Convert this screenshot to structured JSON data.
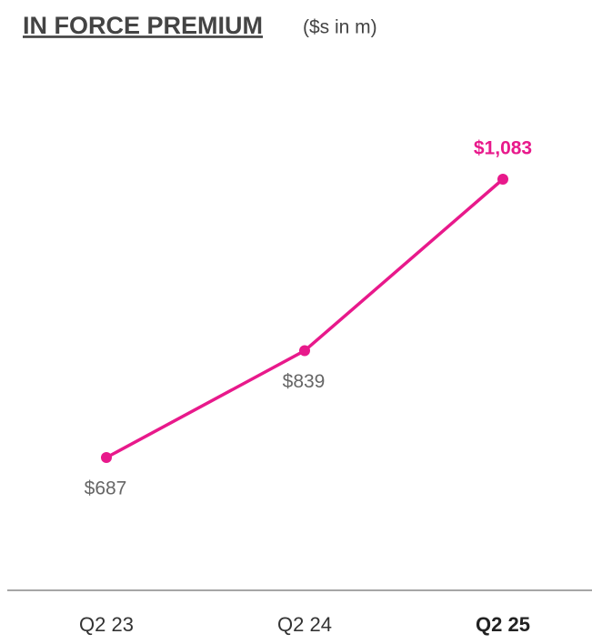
{
  "chart_data": {
    "type": "line",
    "title": "IN FORCE PREMIUM",
    "subtitle": "($s in m)",
    "categories": [
      "Q2 23",
      "Q2 24",
      "Q2 25"
    ],
    "values": [
      687,
      839,
      1083
    ],
    "value_labels": [
      "$687",
      "$839",
      "$1,083"
    ],
    "color": "#e8198b"
  }
}
